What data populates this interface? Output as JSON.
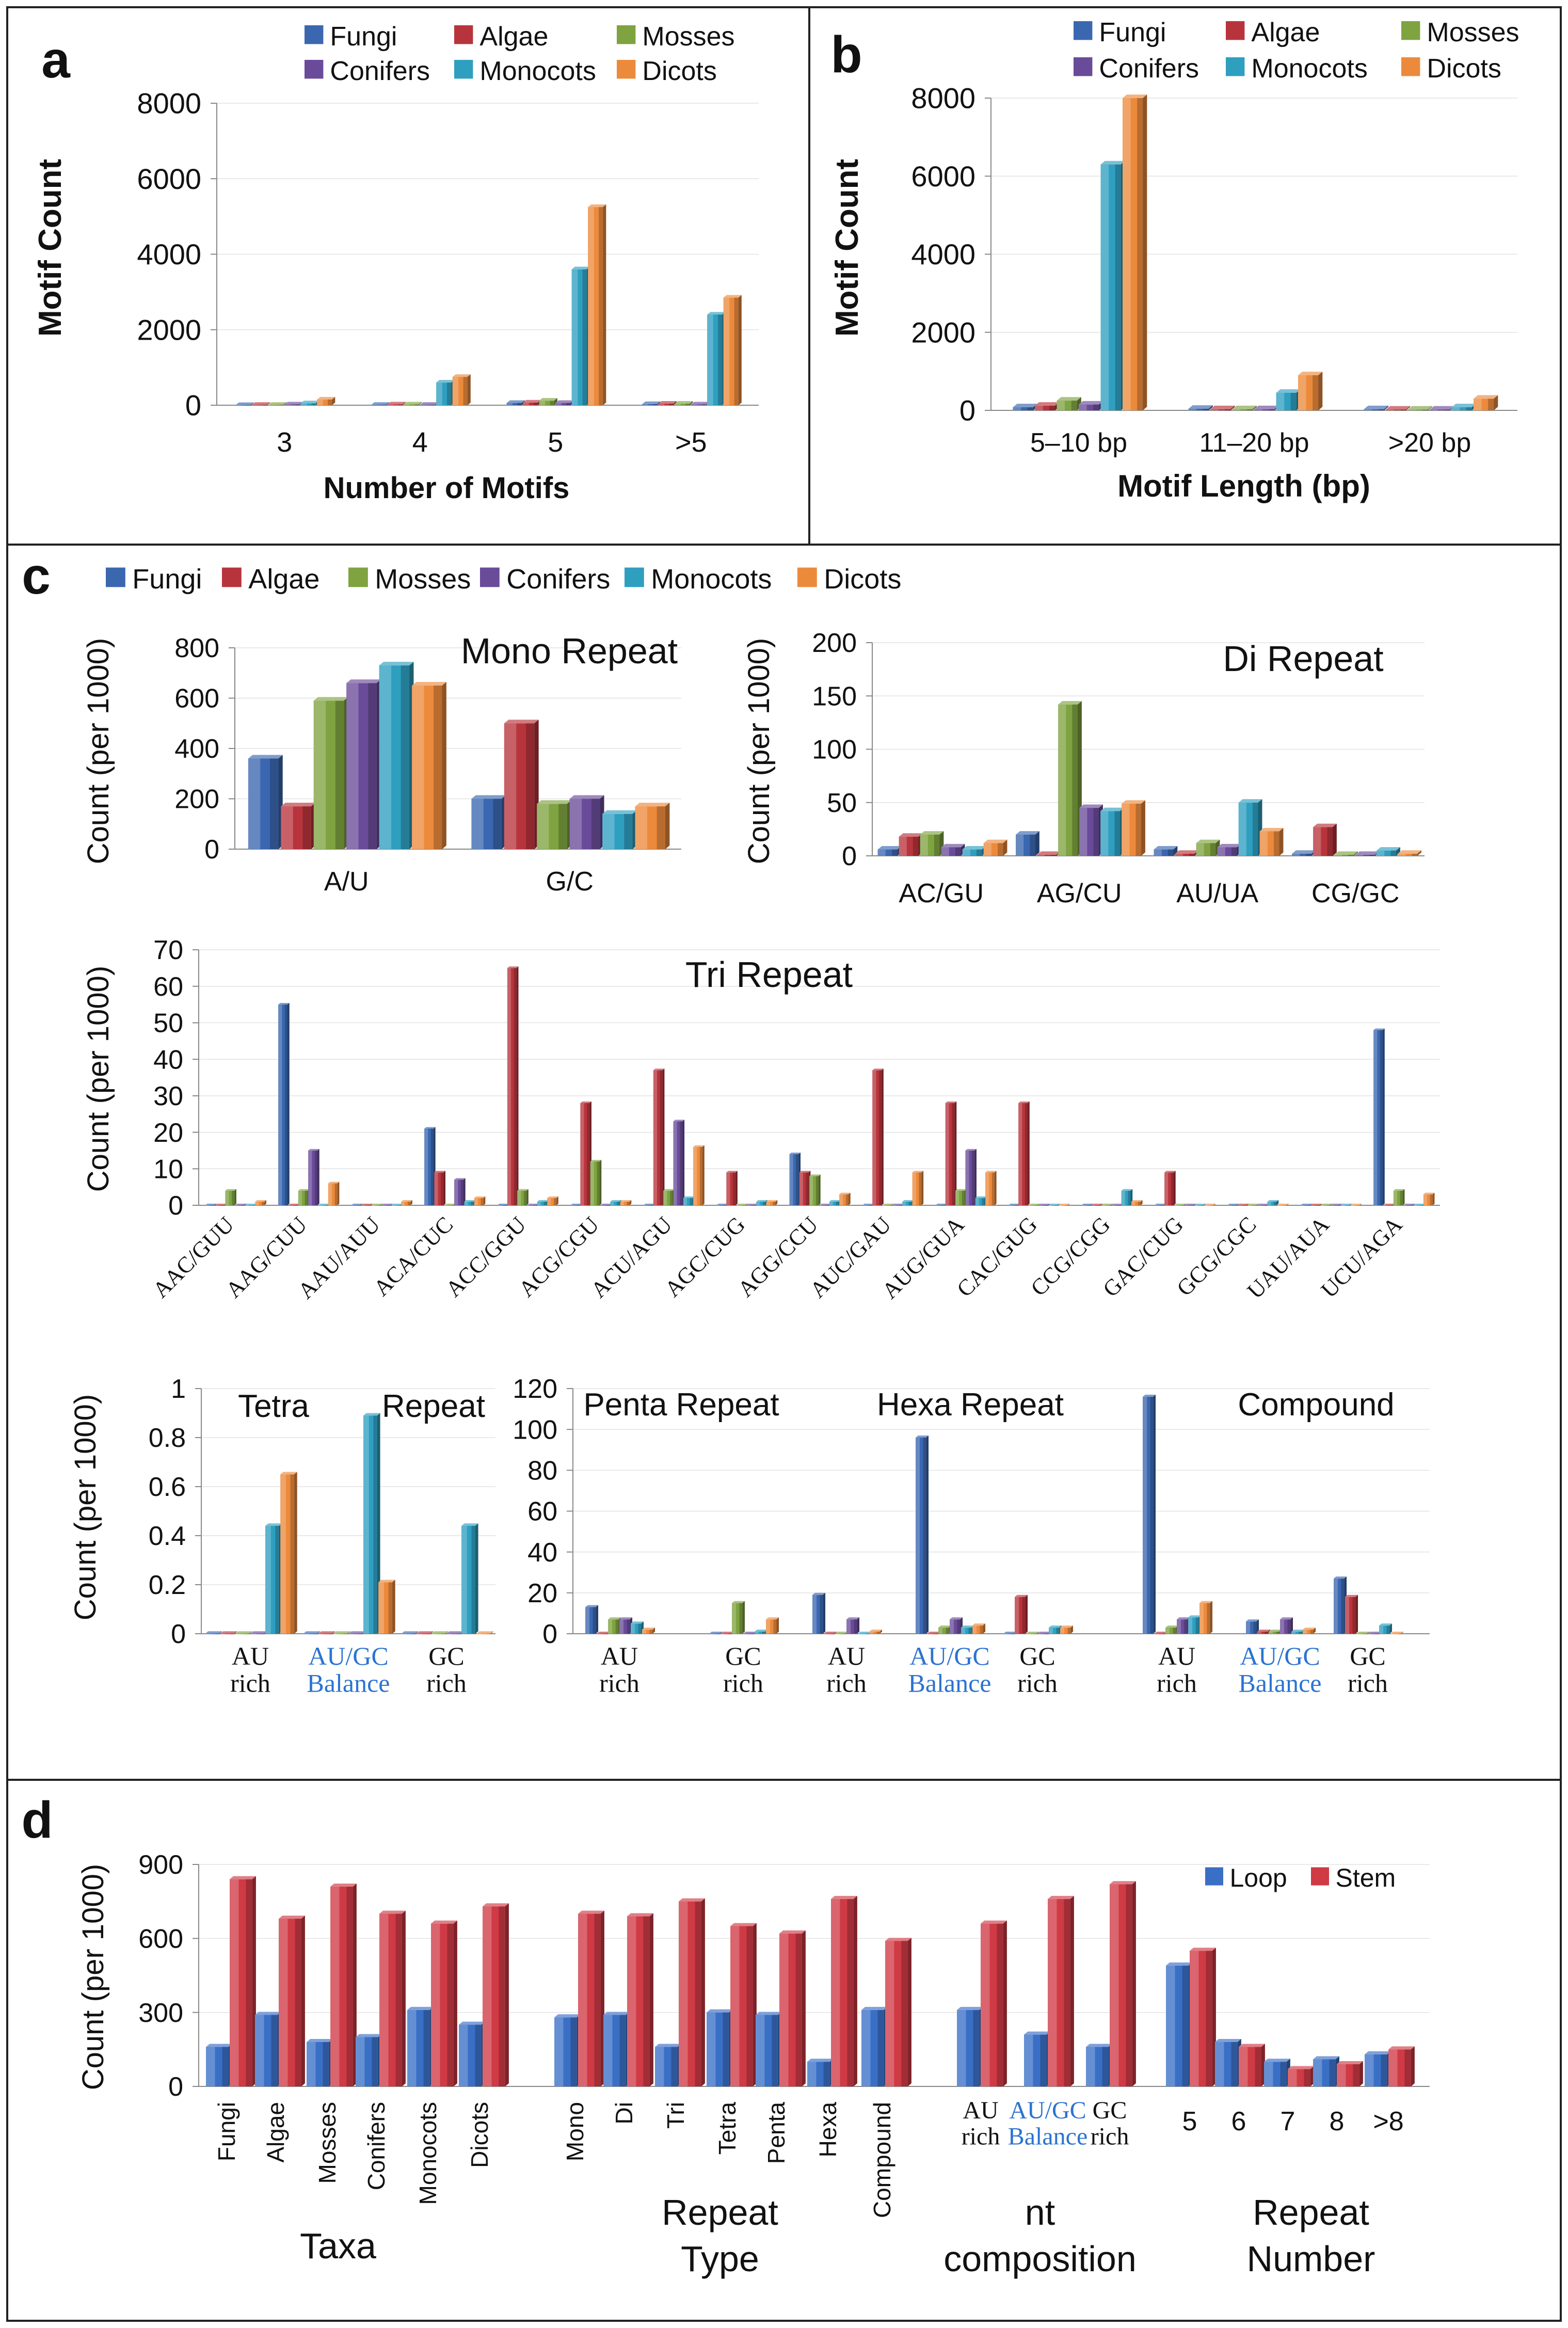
{
  "taxa_colors": {
    "Fungi": "#3a67b0",
    "Algae": "#b8343c",
    "Mosses": "#7ea340",
    "Conifers": "#6a4b9a",
    "Monocots": "#2f9fc0",
    "Dicots": "#ec8a3c"
  },
  "loopstem_colors": {
    "Loop": "#3a6fc6",
    "Stem": "#cf3a45"
  },
  "blue_label_color": "#2b73d1",
  "chart_data": [
    {
      "id": "a",
      "panel_label": "a",
      "type": "bar",
      "title": "",
      "legend": [
        "Fungi",
        "Algae",
        "Mosses",
        "Conifers",
        "Monocots",
        "Dicots"
      ],
      "categories": [
        "3",
        "4",
        "5",
        ">5"
      ],
      "series": [
        {
          "name": "Fungi",
          "values": [
            5,
            10,
            60,
            30
          ]
        },
        {
          "name": "Algae",
          "values": [
            10,
            20,
            70,
            40
          ]
        },
        {
          "name": "Mosses",
          "values": [
            10,
            20,
            120,
            40
          ]
        },
        {
          "name": "Conifers",
          "values": [
            20,
            10,
            60,
            20
          ]
        },
        {
          "name": "Monocots",
          "values": [
            50,
            600,
            3600,
            2400
          ]
        },
        {
          "name": "Dicots",
          "values": [
            150,
            750,
            5250,
            2850
          ]
        }
      ],
      "xlabel": "Number of Motifs",
      "ylabel": "Motif Count",
      "ylim": [
        0,
        8000
      ],
      "yticks": [
        "0",
        "2000",
        "4000",
        "6000",
        "8000"
      ]
    },
    {
      "id": "b",
      "panel_label": "b",
      "type": "bar",
      "title": "",
      "legend": [
        "Fungi",
        "Algae",
        "Mosses",
        "Conifers",
        "Monocots",
        "Dicots"
      ],
      "categories": [
        "5–10 bp",
        "11–20 bp",
        ">20 bp"
      ],
      "series": [
        {
          "name": "Fungi",
          "values": [
            80,
            40,
            30
          ]
        },
        {
          "name": "Algae",
          "values": [
            120,
            30,
            20
          ]
        },
        {
          "name": "Mosses",
          "values": [
            250,
            30,
            20
          ]
        },
        {
          "name": "Conifers",
          "values": [
            150,
            30,
            20
          ]
        },
        {
          "name": "Monocots",
          "values": [
            6300,
            450,
            80
          ]
        },
        {
          "name": "Dicots",
          "values": [
            8000,
            900,
            300
          ]
        }
      ],
      "xlabel": "Motif Length (bp)",
      "ylabel": "Motif Count",
      "ylim": [
        0,
        8000
      ],
      "yticks": [
        "0",
        "2000",
        "4000",
        "6000",
        "8000"
      ]
    },
    {
      "id": "c1",
      "panel_label": "c",
      "type": "bar",
      "title": "Mono  Repeat",
      "legend": [
        "Fungi",
        "Algae",
        "Mosses",
        "Conifers",
        "Monocots",
        "Dicots"
      ],
      "categories": [
        "A/U",
        "G/C"
      ],
      "series": [
        {
          "name": "Fungi",
          "values": [
            360,
            200
          ]
        },
        {
          "name": "Algae",
          "values": [
            170,
            500
          ]
        },
        {
          "name": "Mosses",
          "values": [
            590,
            180
          ]
        },
        {
          "name": "Conifers",
          "values": [
            660,
            200
          ]
        },
        {
          "name": "Monocots",
          "values": [
            730,
            140
          ]
        },
        {
          "name": "Dicots",
          "values": [
            650,
            170
          ]
        }
      ],
      "xlabel": "",
      "ylabel": "Count (per 1000)",
      "ylim": [
        0,
        800
      ],
      "yticks": [
        "0",
        "200",
        "400",
        "600",
        "800"
      ]
    },
    {
      "id": "c2",
      "type": "bar",
      "title": "Di  Repeat",
      "categories": [
        "AC/GU",
        "AG/CU",
        "AU/UA",
        "CG/GC"
      ],
      "series": [
        {
          "name": "Fungi",
          "values": [
            6,
            20,
            6,
            2
          ]
        },
        {
          "name": "Algae",
          "values": [
            18,
            1,
            2,
            27
          ]
        },
        {
          "name": "Mosses",
          "values": [
            20,
            142,
            12,
            1
          ]
        },
        {
          "name": "Conifers",
          "values": [
            8,
            45,
            8,
            1
          ]
        },
        {
          "name": "Monocots",
          "values": [
            6,
            42,
            50,
            5
          ]
        },
        {
          "name": "Dicots",
          "values": [
            12,
            49,
            23,
            2
          ]
        }
      ],
      "xlabel": "",
      "ylabel": "Count (per 1000)",
      "ylim": [
        0,
        200
      ],
      "yticks": [
        "0",
        "50",
        "100",
        "150",
        "200"
      ]
    },
    {
      "id": "c3",
      "type": "bar",
      "title": "Tri Repeat",
      "categories": [
        "AAC/GUU",
        "AAG/CUU",
        "AAU/AUU",
        "ACA/CUC",
        "ACC/GGU",
        "ACG/CGU",
        "ACU/AGU",
        "AGC/CUG",
        "AGG/CCU",
        "AUC/GAU",
        "AUG/GUA",
        "CAC/GUG",
        "CCG/CGG",
        "GAC/CUG",
        "GCG/CGC",
        "UAU/AUA",
        "UCU/AGA"
      ],
      "series": [
        {
          "name": "Fungi",
          "values": [
            0,
            55,
            0,
            21,
            0,
            0,
            0,
            0,
            14,
            0,
            0,
            0,
            0,
            0,
            0,
            0,
            48
          ]
        },
        {
          "name": "Algae",
          "values": [
            0,
            0,
            0,
            9,
            65,
            28,
            37,
            9,
            9,
            37,
            28,
            28,
            0,
            9,
            0,
            0,
            0
          ]
        },
        {
          "name": "Mosses",
          "values": [
            4,
            4,
            0,
            0,
            4,
            12,
            4,
            0,
            8,
            0,
            4,
            0,
            0,
            0,
            0,
            0,
            4
          ]
        },
        {
          "name": "Conifers",
          "values": [
            0,
            15,
            0,
            7,
            0,
            0,
            23,
            0,
            0,
            0,
            15,
            0,
            0,
            0,
            0,
            0,
            0
          ]
        },
        {
          "name": "Monocots",
          "values": [
            0,
            0,
            0,
            1,
            1,
            1,
            2,
            1,
            1,
            1,
            2,
            0,
            4,
            0,
            1,
            0,
            0
          ]
        },
        {
          "name": "Dicots",
          "values": [
            1,
            6,
            1,
            2,
            2,
            1,
            16,
            1,
            3,
            9,
            9,
            0,
            1,
            0,
            0,
            0,
            3
          ]
        }
      ],
      "xlabel": "",
      "ylabel": "Count (per 1000)",
      "ylim": [
        0,
        70
      ],
      "yticks": [
        "0",
        "10",
        "20",
        "30",
        "40",
        "50",
        "60",
        "70"
      ]
    },
    {
      "id": "c4",
      "type": "bar",
      "title_parts": [
        "Tetra",
        "Repeat"
      ],
      "categories": [
        "AU rich",
        "AU/GC Balance",
        "GC rich"
      ],
      "series": [
        {
          "name": "Fungi",
          "values": [
            0,
            0,
            0
          ]
        },
        {
          "name": "Algae",
          "values": [
            0,
            0,
            0
          ]
        },
        {
          "name": "Mosses",
          "values": [
            0,
            0,
            0
          ]
        },
        {
          "name": "Conifers",
          "values": [
            0,
            0,
            0
          ]
        },
        {
          "name": "Monocots",
          "values": [
            0.44,
            0.89,
            0.44
          ]
        },
        {
          "name": "Dicots",
          "values": [
            0.65,
            0.21,
            0
          ]
        }
      ],
      "xlabel": "",
      "ylabel": "Count (per 1000)",
      "ylim": [
        0,
        1
      ],
      "yticks": [
        "0",
        "0.2",
        "0.4",
        "0.6",
        "0.8",
        "1"
      ]
    },
    {
      "id": "c5",
      "type": "bar",
      "titles": [
        "Penta  Repeat",
        "Hexa Repeat",
        "Compound"
      ],
      "groups": [
        {
          "name": "Penta Repeat",
          "categories": [
            "AU rich",
            "GC rich"
          ],
          "series": [
            {
              "name": "Fungi",
              "values": [
                13,
                0
              ]
            },
            {
              "name": "Algae",
              "values": [
                0,
                0
              ]
            },
            {
              "name": "Mosses",
              "values": [
                7,
                15
              ]
            },
            {
              "name": "Conifers",
              "values": [
                7,
                0
              ]
            },
            {
              "name": "Monocots",
              "values": [
                5,
                1
              ]
            },
            {
              "name": "Dicots",
              "values": [
                2,
                7
              ]
            }
          ]
        },
        {
          "name": "Hexa Repeat",
          "categories": [
            "AU rich",
            "AU/GC Balance",
            "GC rich"
          ],
          "series": [
            {
              "name": "Fungi",
              "values": [
                19,
                96,
                0
              ]
            },
            {
              "name": "Algae",
              "values": [
                0,
                0,
                18
              ]
            },
            {
              "name": "Mosses",
              "values": [
                0,
                3,
                0
              ]
            },
            {
              "name": "Conifers",
              "values": [
                7,
                7,
                0
              ]
            },
            {
              "name": "Monocots",
              "values": [
                0,
                3,
                3
              ]
            },
            {
              "name": "Dicots",
              "values": [
                1,
                4,
                3
              ]
            }
          ]
        },
        {
          "name": "Compound",
          "categories": [
            "AU rich",
            "AU/GC Balance",
            "GC rich"
          ],
          "series": [
            {
              "name": "Fungi",
              "values": [
                116,
                6,
                27
              ]
            },
            {
              "name": "Algae",
              "values": [
                0,
                1,
                18
              ]
            },
            {
              "name": "Mosses",
              "values": [
                3,
                1,
                0
              ]
            },
            {
              "name": "Conifers",
              "values": [
                7,
                7,
                0
              ]
            },
            {
              "name": "Monocots",
              "values": [
                8,
                1,
                4
              ]
            },
            {
              "name": "Dicots",
              "values": [
                15,
                2,
                0
              ]
            }
          ]
        }
      ],
      "xlabel": "",
      "ylabel": "",
      "ylim": [
        0,
        120
      ],
      "yticks": [
        "0",
        "20",
        "40",
        "60",
        "80",
        "100",
        "120"
      ]
    },
    {
      "id": "d",
      "panel_label": "d",
      "type": "bar",
      "title": "",
      "legend": [
        "Loop",
        "Stem"
      ],
      "groups": [
        {
          "name": "Taxa",
          "categories": [
            "Fungi",
            "Algae",
            "Mosses",
            "Conifers",
            "Monocots",
            "Dicots"
          ],
          "loop": [
            160,
            290,
            180,
            200,
            310,
            250
          ],
          "stem": [
            840,
            680,
            810,
            700,
            660,
            730
          ]
        },
        {
          "name": "Repeat Type",
          "name_lines": [
            "Repeat",
            "Type"
          ],
          "categories": [
            "Mono",
            "Di",
            "Tri",
            "Tetra",
            "Penta",
            "Hexa",
            "Compound"
          ],
          "loop": [
            280,
            290,
            160,
            300,
            290,
            100,
            310
          ],
          "stem": [
            700,
            690,
            750,
            650,
            620,
            760,
            590
          ]
        },
        {
          "name": "nt composition",
          "name_lines": [
            "nt",
            "composition"
          ],
          "categories": [
            "AU rich",
            "AU/GC Balance",
            "GC rich"
          ],
          "loop": [
            310,
            210,
            160
          ],
          "stem": [
            660,
            760,
            820
          ]
        },
        {
          "name": "Repeat Number",
          "name_lines": [
            "Repeat",
            "Number"
          ],
          "categories": [
            "5",
            "6",
            "7",
            "8",
            ">8"
          ],
          "loop": [
            490,
            180,
            100,
            110,
            130
          ],
          "stem": [
            550,
            160,
            70,
            90,
            150
          ]
        }
      ],
      "xlabel": "",
      "ylabel": "Count (per 1000)",
      "ylim": [
        0,
        900
      ],
      "yticks": [
        "0",
        "300",
        "600",
        "900"
      ]
    }
  ]
}
